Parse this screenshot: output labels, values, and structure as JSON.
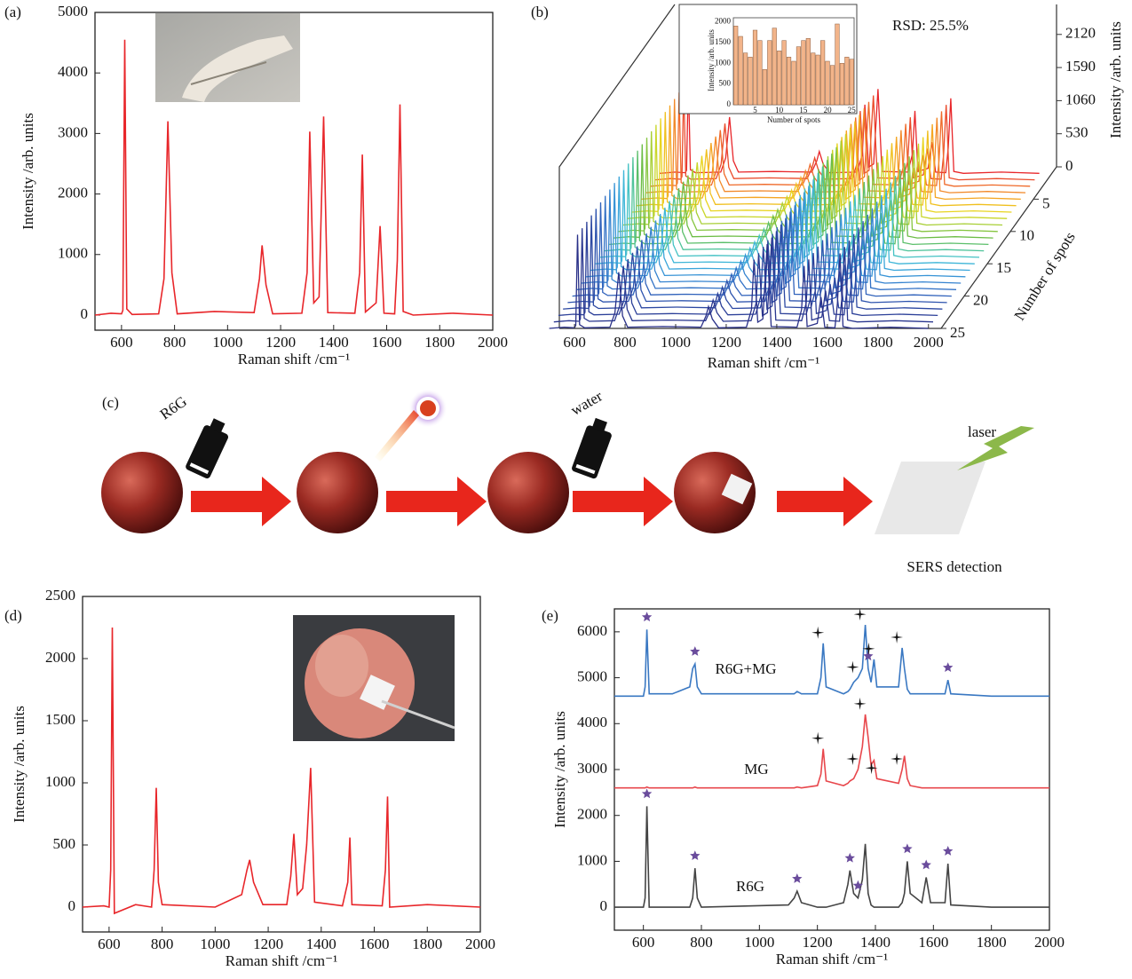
{
  "chart_data": [
    {
      "type": "line",
      "panel": "(a)",
      "x_label": "Raman shift /cm⁻¹",
      "y_label": "Intensity /arb. units",
      "x": [
        500,
        560,
        600,
        605,
        612,
        620,
        640,
        740,
        760,
        775,
        790,
        810,
        950,
        1100,
        1120,
        1130,
        1145,
        1170,
        1280,
        1300,
        1310,
        1325,
        1345,
        1362,
        1378,
        1480,
        1498,
        1508,
        1520,
        1560,
        1575,
        1590,
        1630,
        1640,
        1650,
        1662,
        1700,
        1850,
        2000
      ],
      "series": [
        {
          "color": "#e8262a",
          "values": [
            0,
            30,
            20,
            80,
            4550,
            100,
            10,
            20,
            600,
            3200,
            700,
            20,
            60,
            40,
            600,
            1150,
            500,
            20,
            30,
            700,
            3030,
            200,
            300,
            3280,
            40,
            30,
            700,
            2650,
            50,
            200,
            1470,
            30,
            20,
            900,
            3480,
            60,
            0,
            30,
            0
          ]
        }
      ],
      "xlim": [
        500,
        2000
      ],
      "ylim": [
        -250,
        5000
      ],
      "xticks": [
        600,
        800,
        1000,
        1200,
        1400,
        1600,
        1800,
        2000
      ],
      "yticks": [
        0,
        1000,
        2000,
        3000,
        4000,
        5000
      ]
    },
    {
      "type": "waterfall",
      "panel": "(b)",
      "x_label": "Raman shift /cm⁻¹",
      "y_label": "Intensity /arb. units",
      "z_label": "Number of spots",
      "annotation": "RSD: 25.5%",
      "x": [
        500,
        560,
        600,
        605,
        612,
        620,
        640,
        740,
        760,
        775,
        790,
        810,
        950,
        1100,
        1120,
        1130,
        1145,
        1170,
        1280,
        1300,
        1310,
        1325,
        1345,
        1362,
        1378,
        1480,
        1498,
        1508,
        1520,
        1560,
        1575,
        1590,
        1630,
        1640,
        1650,
        1662,
        1700,
        1850,
        2000
      ],
      "values": [
        0,
        20,
        10,
        50,
        1500,
        60,
        10,
        20,
        250,
        900,
        200,
        20,
        30,
        20,
        200,
        350,
        150,
        10,
        20,
        300,
        1100,
        100,
        150,
        1350,
        30,
        20,
        300,
        1000,
        30,
        80,
        500,
        20,
        10,
        400,
        1200,
        30,
        0,
        20,
        0
      ],
      "colors": [
        "#e8262a",
        "#ea4a2a",
        "#ef6a2a",
        "#f2892a",
        "#f5a623",
        "#f0c020",
        "#e8d41f",
        "#c9d62a",
        "#a8cf35",
        "#86c540",
        "#6cbd45",
        "#5bbf6a",
        "#4fc39a",
        "#45c2c4",
        "#3fb6d8",
        "#3aa5da",
        "#3894d6",
        "#3583d0",
        "#3372c6",
        "#3062bb",
        "#2e54ae",
        "#2c48a2",
        "#2b3f98",
        "#2a378f",
        "#293088"
      ],
      "xlim": [
        540,
        2050
      ],
      "ylim": [
        0,
        2600
      ],
      "zlim": [
        0,
        25
      ],
      "xticks": [
        600,
        800,
        1000,
        1200,
        1400,
        1600,
        1800,
        2000
      ],
      "yticks": [
        0,
        530,
        1060,
        1590,
        2120
      ],
      "zticks": [
        5,
        10,
        15,
        20,
        25
      ],
      "inset": {
        "type": "bar",
        "x_label": "Number of spots",
        "y_label": "Intensity /arb. units",
        "color": "#f2b48a",
        "x": [
          1,
          2,
          3,
          4,
          5,
          6,
          7,
          8,
          9,
          10,
          11,
          12,
          13,
          14,
          15,
          16,
          17,
          18,
          19,
          20,
          21,
          22,
          23,
          24,
          25
        ],
        "values": [
          1900,
          1650,
          1250,
          1150,
          1800,
          1550,
          850,
          1550,
          1850,
          1300,
          1550,
          1150,
          1050,
          1400,
          1550,
          1600,
          1250,
          1200,
          1550,
          1050,
          950,
          1950,
          1000,
          1150,
          1100
        ],
        "xlim": [
          0.5,
          25.5
        ],
        "ylim": [
          0,
          2100
        ],
        "xticks": [
          5,
          10,
          15,
          20,
          25
        ],
        "yticks": [
          0,
          500,
          1000,
          1500,
          2000
        ]
      }
    },
    {
      "type": "line",
      "panel": "(d)",
      "x_label": "Raman shift /cm⁻¹",
      "y_label": "Intensity /arb. units",
      "x": [
        500,
        580,
        600,
        606,
        612,
        620,
        700,
        760,
        770,
        778,
        786,
        800,
        1000,
        1100,
        1120,
        1130,
        1145,
        1180,
        1270,
        1285,
        1297,
        1310,
        1330,
        1345,
        1360,
        1375,
        1480,
        1500,
        1508,
        1516,
        1630,
        1642,
        1650,
        1658,
        1800,
        2000
      ],
      "series": [
        {
          "color": "#e8262a",
          "values": [
            0,
            10,
            0,
            300,
            2250,
            -50,
            20,
            0,
            300,
            960,
            200,
            20,
            0,
            100,
            300,
            380,
            200,
            20,
            20,
            250,
            590,
            100,
            150,
            500,
            1120,
            40,
            10,
            200,
            560,
            20,
            10,
            300,
            890,
            0,
            20,
            0
          ]
        }
      ],
      "xlim": [
        500,
        2000
      ],
      "ylim": [
        -200,
        2500
      ],
      "xticks": [
        600,
        800,
        1000,
        1200,
        1400,
        1600,
        1800,
        2000
      ],
      "yticks": [
        0,
        500,
        1000,
        1500,
        2000,
        2500
      ]
    },
    {
      "type": "line",
      "panel": "(e)",
      "x_label": "Raman shift /cm⁻¹",
      "y_label": "Intensity /arb. units",
      "x": [
        500,
        600,
        606,
        612,
        620,
        700,
        760,
        770,
        778,
        786,
        800,
        1100,
        1120,
        1130,
        1145,
        1200,
        1212,
        1220,
        1230,
        1290,
        1305,
        1312,
        1325,
        1340,
        1355,
        1365,
        1375,
        1385,
        1395,
        1405,
        1480,
        1492,
        1500,
        1510,
        1520,
        1560,
        1575,
        1590,
        1640,
        1650,
        1660,
        1800,
        2000
      ],
      "series": [
        {
          "name": "R6G+MG",
          "color": "#3a78c2",
          "values": [
            4600,
            4600,
            4800,
            6050,
            4650,
            4650,
            4800,
            5200,
            5300,
            4800,
            4650,
            4650,
            4650,
            4700,
            4650,
            4650,
            5000,
            5750,
            4800,
            4650,
            4700,
            4750,
            4900,
            5000,
            5200,
            6150,
            5200,
            4900,
            5400,
            4800,
            4800,
            5650,
            5200,
            4750,
            4650,
            4650,
            4650,
            4650,
            4650,
            4950,
            4650,
            4600,
            4600
          ],
          "star_x": [
            612,
            778,
            1375,
            1650
          ],
          "cross_x": [
            1220,
            1340,
            1365,
            1395,
            1492
          ]
        },
        {
          "name": "MG",
          "color": "#e8474c",
          "values": [
            2600,
            2600,
            2600,
            2620,
            2600,
            2600,
            2600,
            2600,
            2620,
            2600,
            2600,
            2600,
            2600,
            2620,
            2600,
            2650,
            2900,
            3450,
            2750,
            2650,
            2700,
            2750,
            2800,
            3000,
            3500,
            4200,
            3700,
            3100,
            3200,
            2800,
            2700,
            3000,
            3300,
            2800,
            2650,
            2600,
            2600,
            2600,
            2600,
            2600,
            2600,
            2600,
            2600
          ],
          "star_x": [],
          "cross_x": [
            1220,
            1340,
            1365,
            1405,
            1492
          ]
        },
        {
          "name": "R6G",
          "color": "#444444",
          "values": [
            0,
            0,
            200,
            2200,
            0,
            0,
            0,
            200,
            850,
            200,
            0,
            50,
            200,
            350,
            100,
            0,
            0,
            0,
            0,
            100,
            500,
            800,
            300,
            200,
            600,
            1380,
            300,
            50,
            0,
            0,
            0,
            100,
            300,
            1000,
            300,
            100,
            650,
            100,
            100,
            950,
            50,
            0,
            0
          ],
          "star_x": [
            612,
            778,
            1130,
            1312,
            1340,
            1510,
            1575,
            1650
          ],
          "cross_x": []
        }
      ],
      "xlim": [
        500,
        2000
      ],
      "ylim": [
        -500,
        6500
      ],
      "xticks": [
        600,
        800,
        1000,
        1200,
        1400,
        1600,
        1800,
        2000
      ],
      "yticks": [
        0,
        1000,
        2000,
        3000,
        4000,
        5000,
        6000
      ]
    }
  ],
  "diagram": {
    "panel": "(c)",
    "spray_label": "R6G",
    "water_label": "water",
    "laser_label": "laser",
    "caption": "SERS detection"
  }
}
